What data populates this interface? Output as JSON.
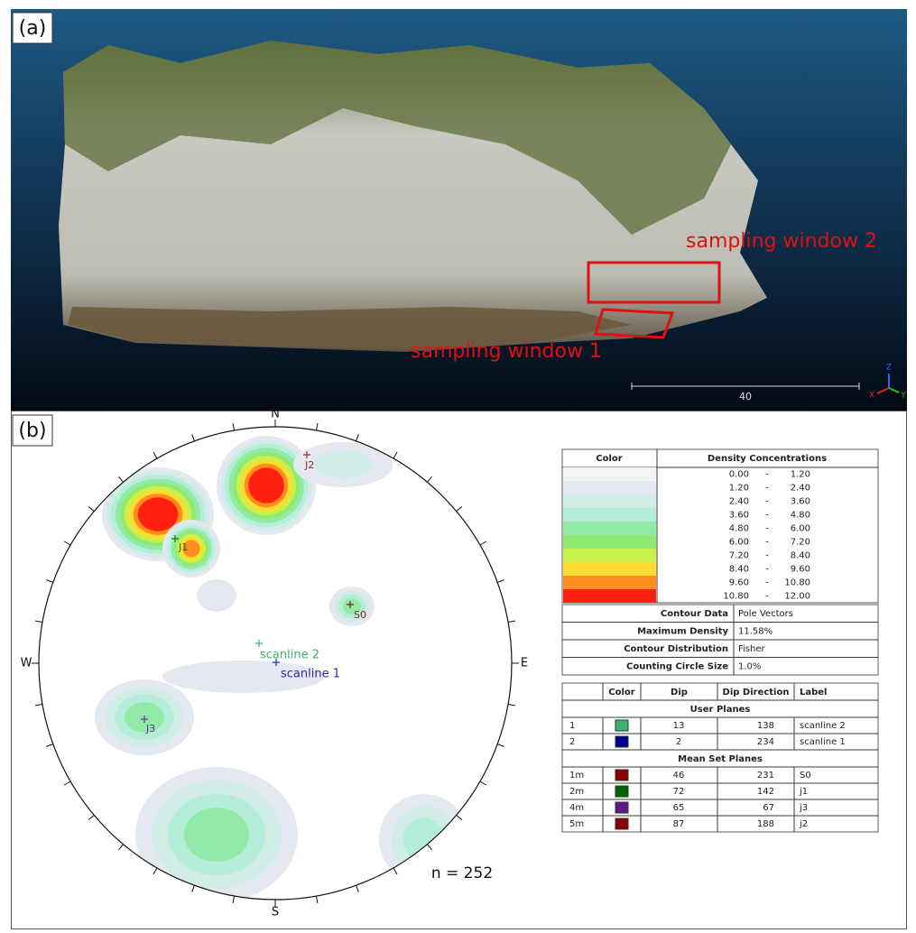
{
  "panel_a": {
    "label": "(a)",
    "annotations": [
      "sampling window 2",
      "sampling window 1"
    ],
    "scale_label": "40",
    "axis_letters": [
      "Z",
      "X",
      "Y"
    ]
  },
  "panel_b": {
    "label": "(b)",
    "directions": [
      "N",
      "E",
      "S",
      "W"
    ],
    "plot_labels": [
      {
        "text": "J2",
        "color": "#9b2d2d"
      },
      {
        "text": "J1",
        "color": "#1e6b1e"
      },
      {
        "text": "S0",
        "color": "#8b1a1a"
      },
      {
        "text": "scanline 2",
        "color": "#3cb371"
      },
      {
        "text": "scanline 1",
        "color": "#2a2aa0"
      },
      {
        "text": "J3",
        "color": "#6a2a9a"
      }
    ],
    "n_label": "n = 252",
    "density_table": {
      "headers": [
        "Color",
        "Density Concentrations"
      ],
      "rows": [
        [
          "0.00",
          "-",
          "1.20"
        ],
        [
          "1.20",
          "-",
          "2.40"
        ],
        [
          "2.40",
          "-",
          "3.60"
        ],
        [
          "3.60",
          "-",
          "4.80"
        ],
        [
          "4.80",
          "-",
          "6.00"
        ],
        [
          "6.00",
          "-",
          "7.20"
        ],
        [
          "7.20",
          "-",
          "8.40"
        ],
        [
          "8.40",
          "-",
          "9.60"
        ],
        [
          "9.60",
          "-",
          "10.80"
        ],
        [
          "10.80",
          "-",
          "12.00"
        ]
      ],
      "colors": [
        "#f4f4f8",
        "#e4e8f0",
        "#d2ece8",
        "#b4eed8",
        "#92eaa8",
        "#90ea70",
        "#c9f04c",
        "#ffdc30",
        "#ff8c1e",
        "#ff2010"
      ]
    },
    "contour_info": [
      [
        "Contour Data",
        "Pole Vectors"
      ],
      [
        "Maximum Density",
        "11.58%"
      ],
      [
        "Contour Distribution",
        "Fisher"
      ],
      [
        "Counting Circle Size",
        "1.0%"
      ]
    ],
    "planes_table": {
      "headers": [
        "Color",
        "Dip",
        "Dip Direction",
        "Label"
      ],
      "groups": [
        {
          "title": "User Planes",
          "rows": [
            {
              "id": "1",
              "color": "#3cb371",
              "dip": 13,
              "dip_direction": 138,
              "label": "scanline 2"
            },
            {
              "id": "2",
              "color": "#00008b",
              "dip": 2,
              "dip_direction": 234,
              "label": "scanline 1"
            }
          ]
        },
        {
          "title": "Mean Set Planes",
          "rows": [
            {
              "id": "1m",
              "color": "#8b0000",
              "dip": 46,
              "dip_direction": 231,
              "label": "S0"
            },
            {
              "id": "2m",
              "color": "#006400",
              "dip": 72,
              "dip_direction": 142,
              "label": "j1"
            },
            {
              "id": "4m",
              "color": "#5a1a8b",
              "dip": 65,
              "dip_direction": 67,
              "label": "j3"
            },
            {
              "id": "5m",
              "color": "#8b0000",
              "dip": 87,
              "dip_direction": 188,
              "label": "j2"
            }
          ]
        }
      ]
    }
  }
}
